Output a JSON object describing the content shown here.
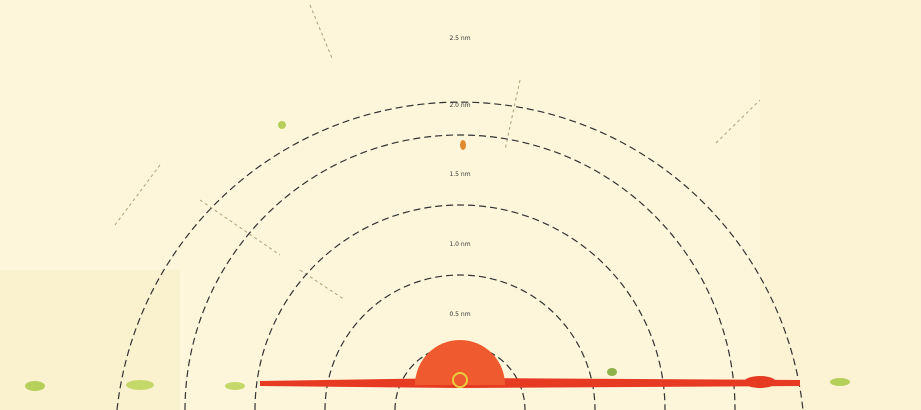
{
  "range_labels": [
    "0.5 nm",
    "1.0 nm",
    "1.5 nm",
    "2.0 nm",
    "2.5 nm"
  ]
}
